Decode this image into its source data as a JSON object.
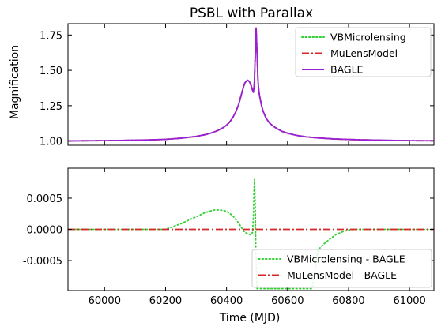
{
  "chart_data": [
    {
      "type": "line",
      "title": "PSBL with Parallax",
      "xlabel": "",
      "ylabel": "Magnification",
      "xlim": [
        59880,
        61080
      ],
      "ylim": [
        0.97,
        1.83
      ],
      "xticks": [
        60000,
        60200,
        60400,
        60600,
        60800,
        61000
      ],
      "yticks": [
        1.0,
        1.25,
        1.5,
        1.75
      ],
      "ytick_labels": [
        "1.00",
        "1.25",
        "1.50",
        "1.75"
      ],
      "legend_position": "top-right",
      "series": [
        {
          "name": "VBMicrolensing",
          "style": "dotted",
          "color": "#2fd02f",
          "x": [
            59880,
            59950,
            60000,
            60050,
            60100,
            60150,
            60200,
            60250,
            60300,
            60330,
            60350,
            60370,
            60390,
            60400,
            60410,
            60420,
            60430,
            60440,
            60445,
            60450,
            60455,
            60460,
            60465,
            60470,
            60475,
            60480,
            60485,
            60488,
            60491,
            60494,
            60497,
            60500,
            60503,
            60506,
            60510,
            60515,
            60520,
            60530,
            60540,
            60550,
            60560,
            60580,
            60600,
            60630,
            60660,
            60700,
            60750,
            60800,
            60850,
            60900,
            60950,
            61000,
            61050,
            61080
          ],
          "values": [
            1.001,
            1.002,
            1.003,
            1.004,
            1.006,
            1.008,
            1.012,
            1.02,
            1.033,
            1.045,
            1.057,
            1.073,
            1.096,
            1.112,
            1.134,
            1.164,
            1.205,
            1.26,
            1.3,
            1.34,
            1.38,
            1.41,
            1.425,
            1.43,
            1.42,
            1.395,
            1.36,
            1.345,
            1.4,
            1.6,
            1.8,
            1.62,
            1.43,
            1.35,
            1.3,
            1.25,
            1.21,
            1.16,
            1.13,
            1.11,
            1.095,
            1.07,
            1.055,
            1.04,
            1.03,
            1.022,
            1.015,
            1.011,
            1.008,
            1.006,
            1.004,
            1.003,
            1.002,
            1.002
          ]
        },
        {
          "name": "MuLensModel",
          "style": "dashdot",
          "color": "#d62728",
          "x": [
            59880,
            59950,
            60000,
            60050,
            60100,
            60150,
            60200,
            60250,
            60300,
            60330,
            60350,
            60370,
            60390,
            60400,
            60410,
            60420,
            60430,
            60440,
            60445,
            60450,
            60455,
            60460,
            60465,
            60470,
            60475,
            60480,
            60485,
            60488,
            60491,
            60494,
            60497,
            60500,
            60503,
            60506,
            60510,
            60515,
            60520,
            60530,
            60540,
            60550,
            60560,
            60580,
            60600,
            60630,
            60660,
            60700,
            60750,
            60800,
            60850,
            60900,
            60950,
            61000,
            61050,
            61080
          ],
          "values": [
            1.001,
            1.002,
            1.003,
            1.004,
            1.006,
            1.008,
            1.012,
            1.02,
            1.033,
            1.045,
            1.057,
            1.073,
            1.096,
            1.112,
            1.134,
            1.164,
            1.205,
            1.26,
            1.3,
            1.34,
            1.38,
            1.41,
            1.425,
            1.43,
            1.42,
            1.395,
            1.36,
            1.345,
            1.4,
            1.6,
            1.8,
            1.62,
            1.43,
            1.35,
            1.3,
            1.25,
            1.21,
            1.16,
            1.13,
            1.11,
            1.095,
            1.07,
            1.055,
            1.04,
            1.03,
            1.022,
            1.015,
            1.011,
            1.008,
            1.006,
            1.004,
            1.003,
            1.002,
            1.002
          ]
        },
        {
          "name": "BAGLE",
          "style": "solid",
          "color": "#9b1fd6",
          "x": [
            59880,
            59950,
            60000,
            60050,
            60100,
            60150,
            60200,
            60250,
            60300,
            60330,
            60350,
            60370,
            60390,
            60400,
            60410,
            60420,
            60430,
            60440,
            60445,
            60450,
            60455,
            60460,
            60465,
            60470,
            60475,
            60480,
            60485,
            60488,
            60491,
            60494,
            60497,
            60500,
            60503,
            60506,
            60510,
            60515,
            60520,
            60530,
            60540,
            60550,
            60560,
            60580,
            60600,
            60630,
            60660,
            60700,
            60750,
            60800,
            60850,
            60900,
            60950,
            61000,
            61050,
            61080
          ],
          "values": [
            1.001,
            1.002,
            1.003,
            1.004,
            1.006,
            1.008,
            1.012,
            1.02,
            1.033,
            1.045,
            1.057,
            1.073,
            1.096,
            1.112,
            1.134,
            1.164,
            1.205,
            1.26,
            1.3,
            1.34,
            1.38,
            1.41,
            1.425,
            1.43,
            1.42,
            1.395,
            1.36,
            1.345,
            1.4,
            1.6,
            1.8,
            1.62,
            1.43,
            1.35,
            1.3,
            1.25,
            1.21,
            1.16,
            1.13,
            1.11,
            1.095,
            1.07,
            1.055,
            1.04,
            1.03,
            1.022,
            1.015,
            1.011,
            1.008,
            1.006,
            1.004,
            1.003,
            1.002,
            1.002
          ]
        }
      ]
    },
    {
      "type": "line",
      "title": "",
      "xlabel": "Time (MJD)",
      "ylabel": "",
      "xlim": [
        59880,
        61080
      ],
      "ylim": [
        -0.00098,
        0.00098
      ],
      "xticks": [
        60000,
        60200,
        60400,
        60600,
        60800,
        61000
      ],
      "xtick_labels": [
        "60000",
        "60200",
        "60400",
        "60600",
        "60800",
        "61000"
      ],
      "yticks": [
        0.0005,
        0.0,
        -0.0005
      ],
      "ytick_labels": [
        "0.0005",
        "0.0000",
        "-0.0005"
      ],
      "legend_position": "bottom-right",
      "series": [
        {
          "name": "VBMicrolensing - BAGLE",
          "style": "dotted",
          "color": "#2fd02f",
          "x": [
            59880,
            60200,
            60250,
            60300,
            60330,
            60360,
            60380,
            60400,
            60420,
            60440,
            60450,
            60460,
            60470,
            60480,
            60485,
            60488,
            60490,
            60492,
            60494,
            60496,
            60498,
            60500,
            60510,
            60520,
            60530,
            60540,
            60560,
            60580,
            60600,
            60620,
            60650,
            60680,
            60700,
            60720,
            60740,
            60760,
            60780,
            60800,
            60820,
            60850,
            60900,
            61000,
            61080
          ],
          "values": [
            0.0,
            0.0,
            9e-05,
            0.0002,
            0.00027,
            0.00031,
            0.00031,
            0.00029,
            0.00022,
            0.0001,
            2e-05,
            -5e-05,
            -7e-05,
            -9e-05,
            -5e-05,
            0.0002,
            0.0006,
            0.0008,
            0.0004,
            -0.0003,
            -0.0007,
            -0.00095,
            -0.00095,
            -0.00095,
            -0.00095,
            -0.00095,
            -0.00095,
            -0.00095,
            -0.00095,
            -0.00095,
            -0.00095,
            -0.00095,
            -0.00033,
            -0.00023,
            -0.00015,
            -8e-05,
            -4e-05,
            -1e-05,
            0.0,
            0.0,
            0.0,
            0.0,
            0.0
          ]
        },
        {
          "name": "MuLensModel - BAGLE",
          "style": "dashdot",
          "color": "#d62728",
          "x": [
            59880,
            61080
          ],
          "values": [
            0.0,
            0.0
          ]
        }
      ]
    }
  ]
}
